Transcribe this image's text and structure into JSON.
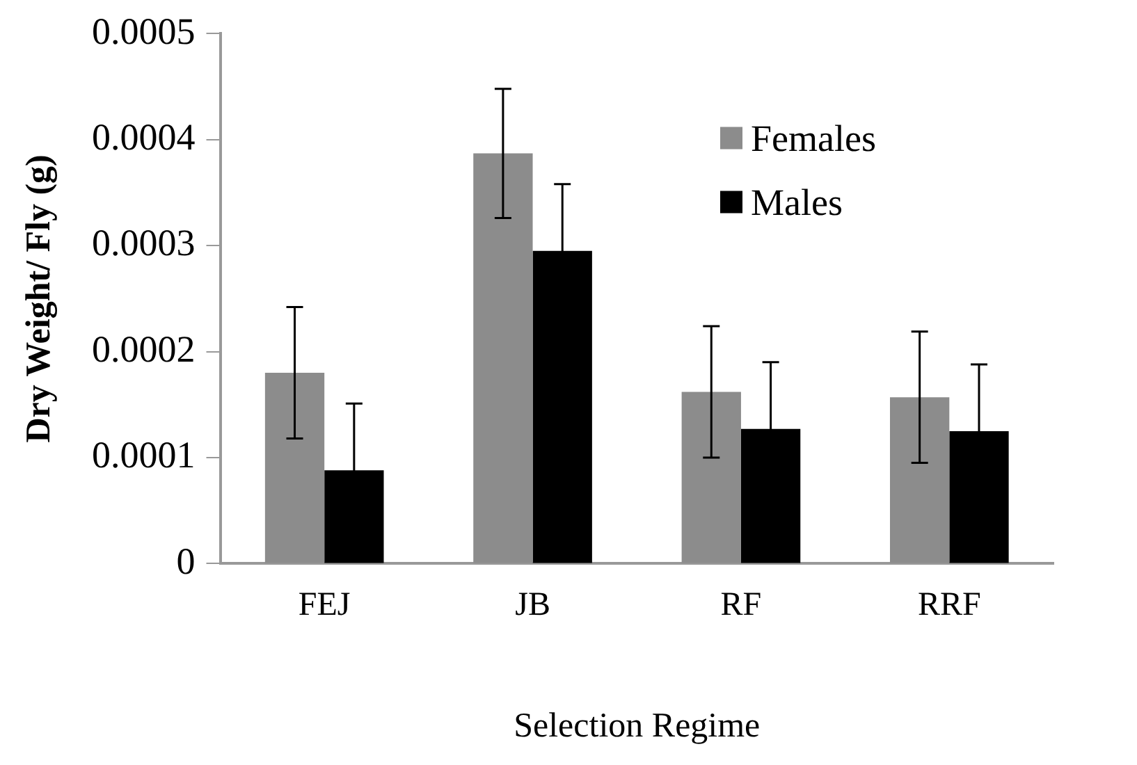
{
  "chart_data": {
    "type": "bar",
    "xlabel": "Selection Regime",
    "ylabel": "Dry Weight/ Fly (g)",
    "categories": [
      "FEJ",
      "JB",
      "RF",
      "RRF"
    ],
    "series": [
      {
        "name": "Females",
        "color": "#8c8c8c",
        "values": [
          0.00018,
          0.000387,
          0.000162,
          0.000157
        ],
        "errors": [
          6.2e-05,
          6.1e-05,
          6.2e-05,
          6.2e-05
        ]
      },
      {
        "name": "Males",
        "color": "#000000",
        "values": [
          8.8e-05,
          0.000295,
          0.000127,
          0.000125
        ],
        "errors": [
          6.3e-05,
          6.3e-05,
          6.3e-05,
          6.3e-05
        ]
      }
    ],
    "ylim": [
      0,
      0.0005
    ],
    "yticks": [
      0,
      0.0001,
      0.0002,
      0.0003,
      0.0004,
      0.0005
    ],
    "legend": "top right",
    "grid": false
  }
}
